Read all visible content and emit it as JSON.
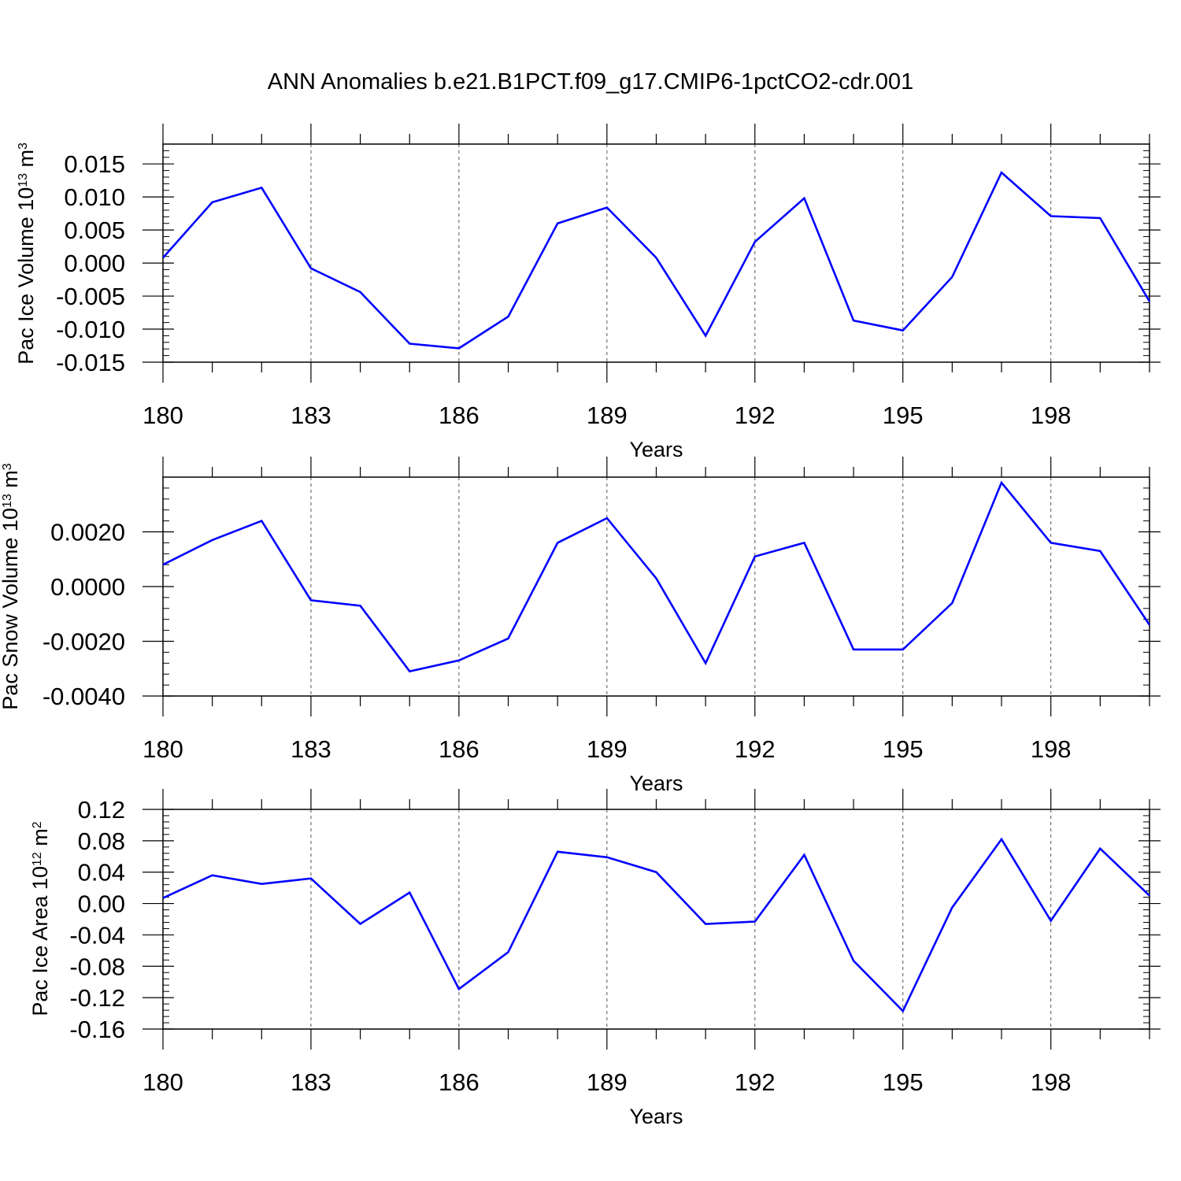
{
  "title": "ANN Anomalies b.e21.B1PCT.f09_g17.CMIP6-1pctCO2-cdr.001",
  "chart_data": [
    {
      "type": "line",
      "ylabel": "Pac Ice Volume 10",
      "ylabel_exp": "13",
      "ylabel_unit": " m",
      "ylabel_unit_exp": "3",
      "xlabel": "Years",
      "xlim": [
        180,
        200
      ],
      "ylim": [
        -0.015,
        0.018
      ],
      "yticks": [
        -0.015,
        -0.01,
        -0.005,
        0.0,
        0.005,
        0.01,
        0.015
      ],
      "ytick_labels": [
        "-0.015",
        "-0.010",
        "-0.005",
        "0.000",
        "0.005",
        "0.010",
        "0.015"
      ],
      "xticks": [
        180,
        183,
        186,
        189,
        192,
        195,
        198
      ],
      "xtick_labels": [
        "180",
        "183",
        "186",
        "189",
        "192",
        "195",
        "198"
      ],
      "line_color": "#0000ff",
      "grid": "vertical dashed at major x ticks",
      "x": [
        180,
        181,
        182,
        183,
        184,
        185,
        186,
        187,
        188,
        189,
        190,
        191,
        192,
        193,
        194,
        195,
        196,
        197,
        198,
        199,
        200
      ],
      "values": [
        0.0008,
        0.0092,
        0.0114,
        -0.0008,
        -0.0044,
        -0.0122,
        -0.0129,
        -0.0081,
        0.006,
        0.0084,
        0.0008,
        -0.011,
        0.0032,
        0.0098,
        -0.0087,
        -0.0102,
        -0.0021,
        0.0137,
        0.0071,
        0.0068,
        -0.0058
      ]
    },
    {
      "type": "line",
      "ylabel": "Pac Snow Volume 10",
      "ylabel_exp": "13",
      "ylabel_unit": " m",
      "ylabel_unit_exp": "3",
      "xlabel": "Years",
      "xlim": [
        180,
        200
      ],
      "ylim": [
        -0.004,
        0.004
      ],
      "yticks": [
        -0.004,
        -0.002,
        0.0,
        0.002
      ],
      "ytick_labels": [
        "-0.0040",
        "-0.0020",
        "0.0000",
        "0.0020"
      ],
      "xticks": [
        180,
        183,
        186,
        189,
        192,
        195,
        198
      ],
      "xtick_labels": [
        "180",
        "183",
        "186",
        "189",
        "192",
        "195",
        "198"
      ],
      "line_color": "#0000ff",
      "grid": "vertical dashed at major x ticks",
      "x": [
        180,
        181,
        182,
        183,
        184,
        185,
        186,
        187,
        188,
        189,
        190,
        191,
        192,
        193,
        194,
        195,
        196,
        197,
        198,
        199,
        200
      ],
      "values": [
        0.0008,
        0.0017,
        0.0024,
        -0.0005,
        -0.0007,
        -0.0031,
        -0.0027,
        -0.0019,
        0.0016,
        0.0025,
        0.0003,
        -0.0028,
        0.0011,
        0.0016,
        -0.0023,
        -0.0023,
        -0.0006,
        0.0038,
        0.0016,
        0.0013,
        -0.0014
      ]
    },
    {
      "type": "line",
      "ylabel": "Pac Ice Area 10",
      "ylabel_exp": "12",
      "ylabel_unit": " m",
      "ylabel_unit_exp": "2",
      "xlabel": "Years",
      "xlim": [
        180,
        200
      ],
      "ylim": [
        -0.16,
        0.12
      ],
      "yticks": [
        -0.16,
        -0.12,
        -0.08,
        -0.04,
        0.0,
        0.04,
        0.08,
        0.12
      ],
      "ytick_labels": [
        "-0.16",
        "-0.12",
        "-0.08",
        "-0.04",
        "0.00",
        "0.04",
        "0.08",
        "0.12"
      ],
      "xticks": [
        180,
        183,
        186,
        189,
        192,
        195,
        198
      ],
      "xtick_labels": [
        "180",
        "183",
        "186",
        "189",
        "192",
        "195",
        "198"
      ],
      "line_color": "#0000ff",
      "grid": "vertical dashed at major x ticks",
      "x": [
        180,
        181,
        182,
        183,
        184,
        185,
        186,
        187,
        188,
        189,
        190,
        191,
        192,
        193,
        194,
        195,
        196,
        197,
        198,
        199,
        200
      ],
      "values": [
        0.007,
        0.036,
        0.025,
        0.032,
        -0.026,
        0.014,
        -0.109,
        -0.062,
        0.066,
        0.059,
        0.04,
        -0.026,
        -0.023,
        0.062,
        -0.073,
        -0.137,
        -0.005,
        0.082,
        -0.022,
        0.07,
        0.01
      ]
    }
  ]
}
